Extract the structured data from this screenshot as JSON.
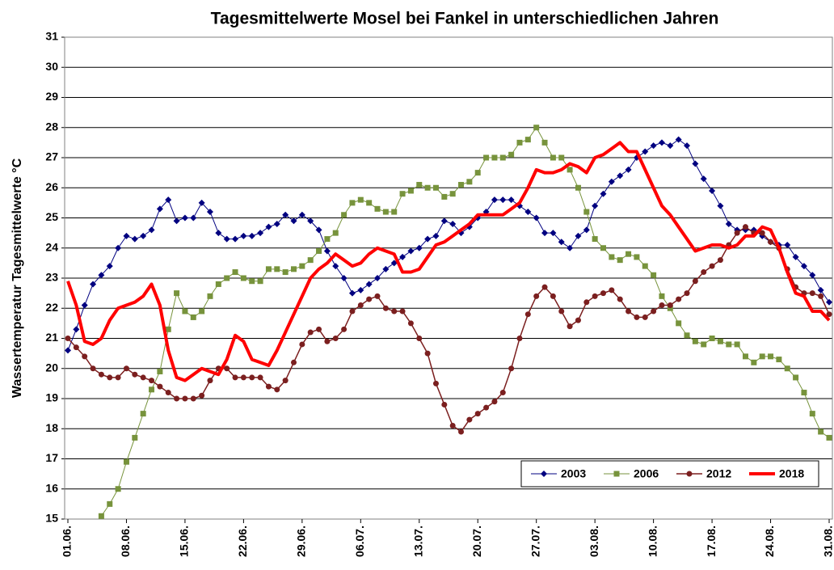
{
  "chart_data": {
    "type": "line",
    "title": "Tagesmittelwerte Mosel bei Fankel in unterschiedlichen Jahren",
    "y_label": "Wassertemperatur  Tagesmittelwerte °C",
    "categories": [
      "01.06.",
      null,
      null,
      null,
      null,
      null,
      null,
      "08.06.",
      null,
      null,
      null,
      null,
      null,
      null,
      "15.06.",
      null,
      null,
      null,
      null,
      null,
      null,
      "22.06.",
      null,
      null,
      null,
      null,
      null,
      null,
      "29.06.",
      null,
      null,
      null,
      null,
      null,
      null,
      "06.07.",
      null,
      null,
      null,
      null,
      null,
      null,
      "13.07.",
      null,
      null,
      null,
      null,
      null,
      null,
      "20.07.",
      null,
      null,
      null,
      null,
      null,
      null,
      "27.07.",
      null,
      null,
      null,
      null,
      null,
      null,
      "03.08.",
      null,
      null,
      null,
      null,
      null,
      null,
      "10.08.",
      null,
      null,
      null,
      null,
      null,
      null,
      "17.08.",
      null,
      null,
      null,
      null,
      null,
      null,
      "24.08.",
      null,
      null,
      null,
      null,
      null,
      null,
      "31.08."
    ],
    "ylim": [
      15,
      31
    ],
    "yticks": [
      15,
      16,
      17,
      18,
      19,
      20,
      21,
      22,
      23,
      24,
      25,
      26,
      27,
      28,
      29,
      30,
      31
    ],
    "grid": true,
    "legend": "lower right",
    "series": [
      {
        "name": "2003",
        "color": "#000080",
        "marker": "diamond",
        "width": 1,
        "values": [
          20.6,
          21.3,
          22.1,
          22.8,
          23.1,
          23.4,
          24.0,
          24.4,
          24.3,
          24.4,
          24.6,
          25.3,
          25.6,
          24.9,
          25.0,
          25.0,
          25.5,
          25.2,
          24.5,
          24.3,
          24.3,
          24.4,
          24.4,
          24.5,
          24.7,
          24.8,
          25.1,
          24.9,
          25.1,
          24.9,
          24.6,
          23.9,
          23.4,
          23.0,
          22.5,
          22.6,
          22.8,
          23.0,
          23.3,
          23.5,
          23.7,
          23.9,
          24.0,
          24.3,
          24.4,
          24.9,
          24.8,
          24.5,
          24.7,
          25.0,
          25.2,
          25.6,
          25.6,
          25.6,
          25.4,
          25.2,
          25.0,
          24.5,
          24.5,
          24.2,
          24.0,
          24.4,
          24.6,
          25.4,
          25.8,
          26.2,
          26.4,
          26.6,
          27.0,
          27.2,
          27.4,
          27.5,
          27.4,
          27.6,
          27.4,
          26.8,
          26.3,
          25.9,
          25.4,
          24.8,
          24.6,
          24.6,
          24.6,
          24.4,
          24.2,
          24.1,
          24.1,
          23.7,
          23.4,
          23.1,
          22.6,
          22.2
        ]
      },
      {
        "name": "2006",
        "color": "#77933c",
        "marker": "square",
        "width": 1,
        "values": [
          null,
          null,
          null,
          null,
          15.1,
          15.5,
          16.0,
          16.9,
          17.7,
          18.5,
          19.3,
          19.9,
          21.3,
          22.5,
          21.9,
          21.7,
          21.9,
          22.4,
          22.8,
          23.0,
          23.2,
          23.0,
          22.9,
          22.9,
          23.3,
          23.3,
          23.2,
          23.3,
          23.4,
          23.6,
          23.9,
          24.3,
          24.5,
          25.1,
          25.5,
          25.6,
          25.5,
          25.3,
          25.2,
          25.2,
          25.8,
          25.9,
          26.1,
          26.0,
          26.0,
          25.7,
          25.8,
          26.1,
          26.2,
          26.5,
          27.0,
          27.0,
          27.0,
          27.1,
          27.5,
          27.6,
          28.0,
          27.5,
          27.0,
          27.0,
          26.6,
          26.0,
          25.2,
          24.3,
          24.0,
          23.7,
          23.6,
          23.8,
          23.7,
          23.4,
          23.1,
          22.4,
          22.0,
          21.5,
          21.1,
          20.9,
          20.8,
          21.0,
          20.9,
          20.8,
          20.8,
          20.4,
          20.2,
          20.4,
          20.4,
          20.3,
          20.0,
          19.7,
          19.2,
          18.5,
          17.9,
          17.7
        ]
      },
      {
        "name": "2012",
        "color": "#7b1f1f",
        "marker": "circle",
        "width": 1.5,
        "values": [
          21.0,
          20.7,
          20.4,
          20.0,
          19.8,
          19.7,
          19.7,
          20.0,
          19.8,
          19.7,
          19.6,
          19.4,
          19.2,
          19.0,
          19.0,
          19.0,
          19.1,
          19.6,
          20.0,
          20.0,
          19.7,
          19.7,
          19.7,
          19.7,
          19.4,
          19.3,
          19.6,
          20.2,
          20.8,
          21.2,
          21.3,
          20.9,
          21.0,
          21.3,
          21.9,
          22.1,
          22.3,
          22.4,
          22.0,
          21.9,
          21.9,
          21.5,
          21.0,
          20.5,
          19.5,
          18.8,
          18.1,
          17.9,
          18.3,
          18.5,
          18.7,
          18.9,
          19.2,
          20.0,
          21.0,
          21.8,
          22.4,
          22.7,
          22.4,
          21.9,
          21.4,
          21.6,
          22.2,
          22.4,
          22.5,
          22.6,
          22.3,
          21.9,
          21.7,
          21.7,
          21.9,
          22.1,
          22.1,
          22.3,
          22.5,
          22.9,
          23.2,
          23.4,
          23.6,
          24.1,
          24.5,
          24.7,
          24.5,
          24.5,
          24.2,
          24.0,
          23.3,
          22.7,
          22.5,
          22.5,
          22.4,
          21.8
        ]
      },
      {
        "name": "2018",
        "color": "#ff0000",
        "marker": null,
        "width": 4,
        "values": [
          22.9,
          22.1,
          20.9,
          20.8,
          21.0,
          21.6,
          22.0,
          22.1,
          22.2,
          22.4,
          22.8,
          22.1,
          20.6,
          19.7,
          19.6,
          19.8,
          20.0,
          19.9,
          19.8,
          20.3,
          21.1,
          20.9,
          20.3,
          20.2,
          20.1,
          20.6,
          21.2,
          21.8,
          22.4,
          23.0,
          23.3,
          23.5,
          23.8,
          23.6,
          23.4,
          23.5,
          23.8,
          24.0,
          23.9,
          23.8,
          23.2,
          23.2,
          23.3,
          23.7,
          24.1,
          24.2,
          24.4,
          24.6,
          24.8,
          25.1,
          25.1,
          25.1,
          25.1,
          25.3,
          25.5,
          26.0,
          26.6,
          26.5,
          26.5,
          26.6,
          26.8,
          26.7,
          26.5,
          27.0,
          27.1,
          27.3,
          27.5,
          27.2,
          27.2,
          26.6,
          26.0,
          25.4,
          25.1,
          24.7,
          24.3,
          23.9,
          24.0,
          24.1,
          24.1,
          24.0,
          24.1,
          24.4,
          24.4,
          24.7,
          24.6,
          24.0,
          23.2,
          22.5,
          22.4,
          21.9,
          21.9,
          21.6
        ]
      }
    ]
  }
}
